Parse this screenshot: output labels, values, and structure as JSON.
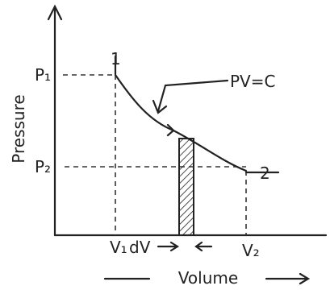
{
  "axes": {
    "y_label": "Pressure",
    "x_label": "Volume"
  },
  "states": [
    {
      "label": "1"
    },
    {
      "label": "2"
    }
  ],
  "pressures": [
    "P₁",
    "P₂"
  ],
  "volumes": [
    "V₁",
    "dV",
    "V₂"
  ],
  "curve_label": "PV=C"
}
